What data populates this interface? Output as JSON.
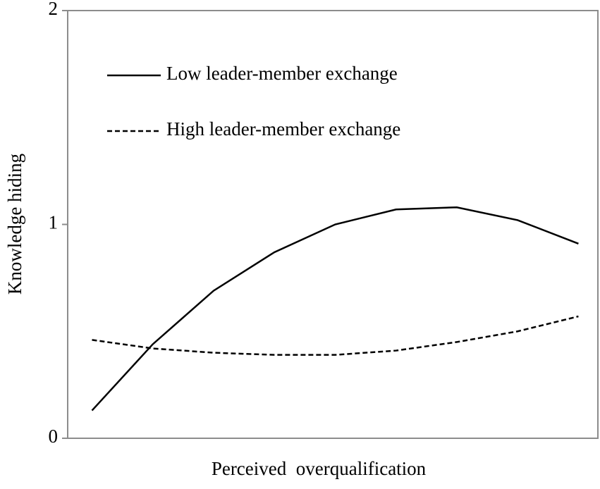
{
  "chart_data": {
    "type": "line",
    "xlabel": "Perceived  overqualification",
    "ylabel": "Knowledge hiding",
    "x": [
      -1,
      -0.75,
      -0.5,
      -0.25,
      0,
      0.25,
      0.5,
      0.75,
      1
    ],
    "xlim": [
      -1.1,
      1.08
    ],
    "ylim": [
      0,
      2
    ],
    "yticks": [
      0,
      1,
      2
    ],
    "legend": "upper-left",
    "series": [
      {
        "name": "Low leader-member exchange",
        "color": "#000000",
        "style": "solid",
        "values": [
          0.13,
          0.44,
          0.69,
          0.87,
          1.0,
          1.07,
          1.08,
          1.02,
          0.91
        ]
      },
      {
        "name": "High leader-member exchange",
        "color": "#000000",
        "style": "dashed",
        "values": [
          0.46,
          0.42,
          0.4,
          0.39,
          0.39,
          0.41,
          0.45,
          0.5,
          0.57
        ]
      }
    ]
  }
}
